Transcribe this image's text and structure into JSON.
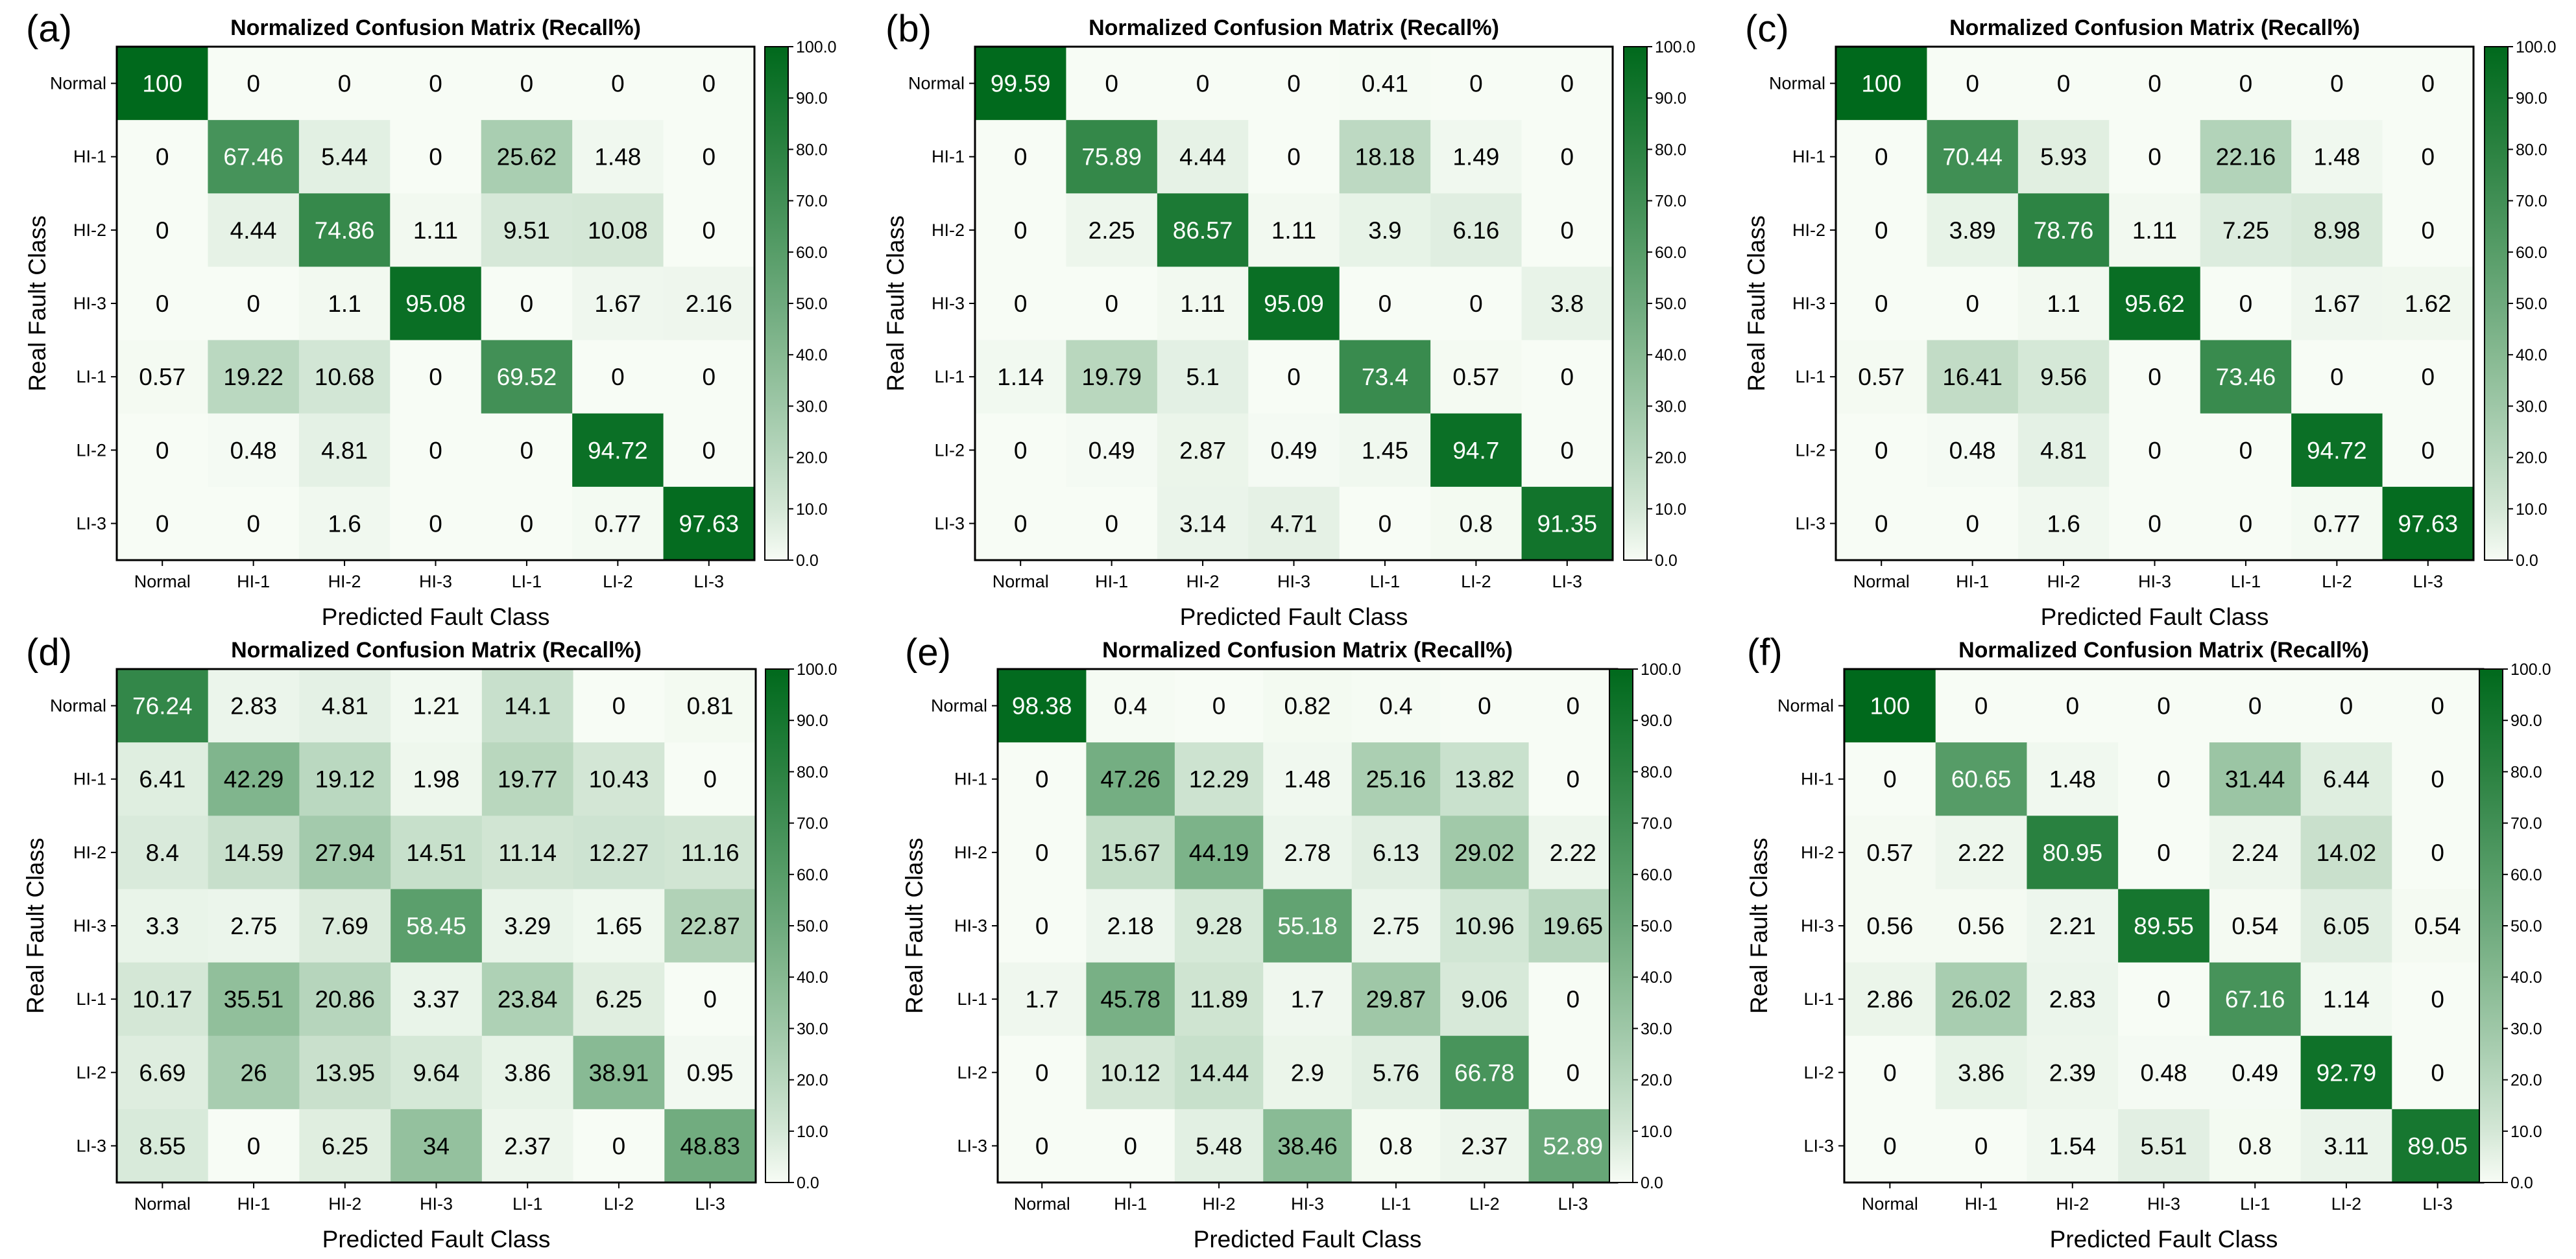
{
  "chart_data": [
    {
      "type": "heatmap",
      "panel": "(a)",
      "title": "Normalized Confusion Matrix (Recall%)",
      "xlabel": "Predicted Fault Class",
      "ylabel": "Real Fault Class",
      "x_categories": [
        "Normal",
        "HI-1",
        "HI-2",
        "HI-3",
        "LI-1",
        "LI-2",
        "LI-3"
      ],
      "y_categories": [
        "Normal",
        "HI-1",
        "HI-2",
        "HI-3",
        "LI-1",
        "LI-2",
        "LI-3"
      ],
      "values": [
        [
          "100",
          "0",
          "0",
          "0",
          "0",
          "0",
          "0"
        ],
        [
          "0",
          "67.46",
          "5.44",
          "0",
          "25.62",
          "1.48",
          "0"
        ],
        [
          "0",
          "4.44",
          "74.86",
          "1.11",
          "9.51",
          "10.08",
          "0"
        ],
        [
          "0",
          "0",
          "1.1",
          "95.08",
          "0",
          "1.67",
          "2.16"
        ],
        [
          "0.57",
          "19.22",
          "10.68",
          "0",
          "69.52",
          "0",
          "0"
        ],
        [
          "0",
          "0.48",
          "4.81",
          "0",
          "0",
          "94.72",
          "0"
        ],
        [
          "0",
          "0",
          "1.6",
          "0",
          "0",
          "0.77",
          "97.63"
        ]
      ],
      "colorbar": {
        "range": [
          0,
          100
        ],
        "ticks": [
          "0.0",
          "10.0",
          "20.0",
          "30.0",
          "40.0",
          "50.0",
          "60.0",
          "70.0",
          "80.0",
          "90.0",
          "100.0"
        ],
        "low_color": "#f7fcf5",
        "high_color": "#00691c"
      }
    },
    {
      "type": "heatmap",
      "panel": "(b)",
      "title": "Normalized Confusion Matrix (Recall%)",
      "xlabel": "Predicted Fault Class",
      "ylabel": "Real Fault Class",
      "x_categories": [
        "Normal",
        "HI-1",
        "HI-2",
        "HI-3",
        "LI-1",
        "LI-2",
        "LI-3"
      ],
      "y_categories": [
        "Normal",
        "HI-1",
        "HI-2",
        "HI-3",
        "LI-1",
        "LI-2",
        "LI-3"
      ],
      "values": [
        [
          "99.59",
          "0",
          "0",
          "0",
          "0.41",
          "0",
          "0"
        ],
        [
          "0",
          "75.89",
          "4.44",
          "0",
          "18.18",
          "1.49",
          "0"
        ],
        [
          "0",
          "2.25",
          "86.57",
          "1.11",
          "3.9",
          "6.16",
          "0"
        ],
        [
          "0",
          "0",
          "1.11",
          "95.09",
          "0",
          "0",
          "3.8"
        ],
        [
          "1.14",
          "19.79",
          "5.1",
          "0",
          "73.4",
          "0.57",
          "0"
        ],
        [
          "0",
          "0.49",
          "2.87",
          "0.49",
          "1.45",
          "94.7",
          "0"
        ],
        [
          "0",
          "0",
          "3.14",
          "4.71",
          "0",
          "0.8",
          "91.35"
        ]
      ],
      "colorbar": {
        "range": [
          0,
          100
        ],
        "ticks": [
          "0.0",
          "10.0",
          "20.0",
          "30.0",
          "40.0",
          "50.0",
          "60.0",
          "70.0",
          "80.0",
          "90.0",
          "100.0"
        ],
        "low_color": "#f7fcf5",
        "high_color": "#00691c"
      }
    },
    {
      "type": "heatmap",
      "panel": "(c)",
      "title": "Normalized Confusion Matrix (Recall%)",
      "xlabel": "Predicted Fault Class",
      "ylabel": "Real Fault Class",
      "x_categories": [
        "Normal",
        "HI-1",
        "HI-2",
        "HI-3",
        "LI-1",
        "LI-2",
        "LI-3"
      ],
      "y_categories": [
        "Normal",
        "HI-1",
        "HI-2",
        "HI-3",
        "LI-1",
        "LI-2",
        "LI-3"
      ],
      "values": [
        [
          "100",
          "0",
          "0",
          "0",
          "0",
          "0",
          "0"
        ],
        [
          "0",
          "70.44",
          "5.93",
          "0",
          "22.16",
          "1.48",
          "0"
        ],
        [
          "0",
          "3.89",
          "78.76",
          "1.11",
          "7.25",
          "8.98",
          "0"
        ],
        [
          "0",
          "0",
          "1.1",
          "95.62",
          "0",
          "1.67",
          "1.62"
        ],
        [
          "0.57",
          "16.41",
          "9.56",
          "0",
          "73.46",
          "0",
          "0"
        ],
        [
          "0",
          "0.48",
          "4.81",
          "0",
          "0",
          "94.72",
          "0"
        ],
        [
          "0",
          "0",
          "1.6",
          "0",
          "0",
          "0.77",
          "97.63"
        ]
      ],
      "colorbar": {
        "range": [
          0,
          100
        ],
        "ticks": [
          "0.0",
          "10.0",
          "20.0",
          "30.0",
          "40.0",
          "50.0",
          "60.0",
          "70.0",
          "80.0",
          "90.0",
          "100.0"
        ],
        "low_color": "#f7fcf5",
        "high_color": "#00691c"
      }
    },
    {
      "type": "heatmap",
      "panel": "(d)",
      "title": "Normalized Confusion Matrix (Recall%)",
      "xlabel": "Predicted Fault Class",
      "ylabel": "Real Fault Class",
      "x_categories": [
        "Normal",
        "HI-1",
        "HI-2",
        "HI-3",
        "LI-1",
        "LI-2",
        "LI-3"
      ],
      "y_categories": [
        "Normal",
        "HI-1",
        "HI-2",
        "HI-3",
        "LI-1",
        "LI-2",
        "LI-3"
      ],
      "values": [
        [
          "76.24",
          "2.83",
          "4.81",
          "1.21",
          "14.1",
          "0",
          "0.81"
        ],
        [
          "6.41",
          "42.29",
          "19.12",
          "1.98",
          "19.77",
          "10.43",
          "0"
        ],
        [
          "8.4",
          "14.59",
          "27.94",
          "14.51",
          "11.14",
          "12.27",
          "11.16"
        ],
        [
          "3.3",
          "2.75",
          "7.69",
          "58.45",
          "3.29",
          "1.65",
          "22.87"
        ],
        [
          "10.17",
          "35.51",
          "20.86",
          "3.37",
          "23.84",
          "6.25",
          "0"
        ],
        [
          "6.69",
          "26",
          "13.95",
          "9.64",
          "3.86",
          "38.91",
          "0.95"
        ],
        [
          "8.55",
          "0",
          "6.25",
          "34",
          "2.37",
          "0",
          "48.83"
        ]
      ],
      "colorbar": {
        "range": [
          0,
          100
        ],
        "ticks": [
          "0.0",
          "10.0",
          "20.0",
          "30.0",
          "40.0",
          "50.0",
          "60.0",
          "70.0",
          "80.0",
          "90.0",
          "100.0"
        ],
        "low_color": "#f7fcf5",
        "high_color": "#00691c"
      }
    },
    {
      "type": "heatmap",
      "panel": "(e)",
      "title": "Normalized Confusion Matrix (Recall%)",
      "xlabel": "Predicted Fault Class",
      "ylabel": "Real Fault Class",
      "x_categories": [
        "Normal",
        "HI-1",
        "HI-2",
        "HI-3",
        "LI-1",
        "LI-2",
        "LI-3"
      ],
      "y_categories": [
        "Normal",
        "HI-1",
        "HI-2",
        "HI-3",
        "LI-1",
        "LI-2",
        "LI-3"
      ],
      "values": [
        [
          "98.38",
          "0.4",
          "0",
          "0.82",
          "0.4",
          "0",
          "0"
        ],
        [
          "0",
          "47.26",
          "12.29",
          "1.48",
          "25.16",
          "13.82",
          "0"
        ],
        [
          "0",
          "15.67",
          "44.19",
          "2.78",
          "6.13",
          "29.02",
          "2.22"
        ],
        [
          "0",
          "2.18",
          "9.28",
          "55.18",
          "2.75",
          "10.96",
          "19.65"
        ],
        [
          "1.7",
          "45.78",
          "11.89",
          "1.7",
          "29.87",
          "9.06",
          "0"
        ],
        [
          "0",
          "10.12",
          "14.44",
          "2.9",
          "5.76",
          "66.78",
          "0"
        ],
        [
          "0",
          "0",
          "5.48",
          "38.46",
          "0.8",
          "2.37",
          "52.89"
        ]
      ],
      "colorbar": {
        "range": [
          0,
          100
        ],
        "ticks": [
          "0.0",
          "10.0",
          "20.0",
          "30.0",
          "40.0",
          "50.0",
          "60.0",
          "70.0",
          "80.0",
          "90.0",
          "100.0"
        ],
        "low_color": "#f7fcf5",
        "high_color": "#00691c"
      }
    },
    {
      "type": "heatmap",
      "panel": "(f)",
      "title": "Normalized Confusion Matrix (Recall%)",
      "xlabel": "Predicted Fault Class",
      "ylabel": "Real Fault Class",
      "x_categories": [
        "Normal",
        "HI-1",
        "HI-2",
        "HI-3",
        "LI-1",
        "LI-2",
        "LI-3"
      ],
      "y_categories": [
        "Normal",
        "HI-1",
        "HI-2",
        "HI-3",
        "LI-1",
        "LI-2",
        "LI-3"
      ],
      "values": [
        [
          "100",
          "0",
          "0",
          "0",
          "0",
          "0",
          "0"
        ],
        [
          "0",
          "60.65",
          "1.48",
          "0",
          "31.44",
          "6.44",
          "0"
        ],
        [
          "0.57",
          "2.22",
          "80.95",
          "0",
          "2.24",
          "14.02",
          "0"
        ],
        [
          "0.56",
          "0.56",
          "2.21",
          "89.55",
          "0.54",
          "6.05",
          "0.54"
        ],
        [
          "2.86",
          "26.02",
          "2.83",
          "0",
          "67.16",
          "1.14",
          "0"
        ],
        [
          "0",
          "3.86",
          "2.39",
          "0.48",
          "0.49",
          "92.79",
          "0"
        ],
        [
          "0",
          "0",
          "1.54",
          "5.51",
          "0.8",
          "3.11",
          "89.05"
        ]
      ],
      "colorbar": {
        "range": [
          0,
          100
        ],
        "ticks": [
          "0.0",
          "10.0",
          "20.0",
          "30.0",
          "40.0",
          "50.0",
          "60.0",
          "70.0",
          "80.0",
          "90.0",
          "100.0"
        ],
        "low_color": "#f7fcf5",
        "high_color": "#00691c"
      }
    }
  ]
}
